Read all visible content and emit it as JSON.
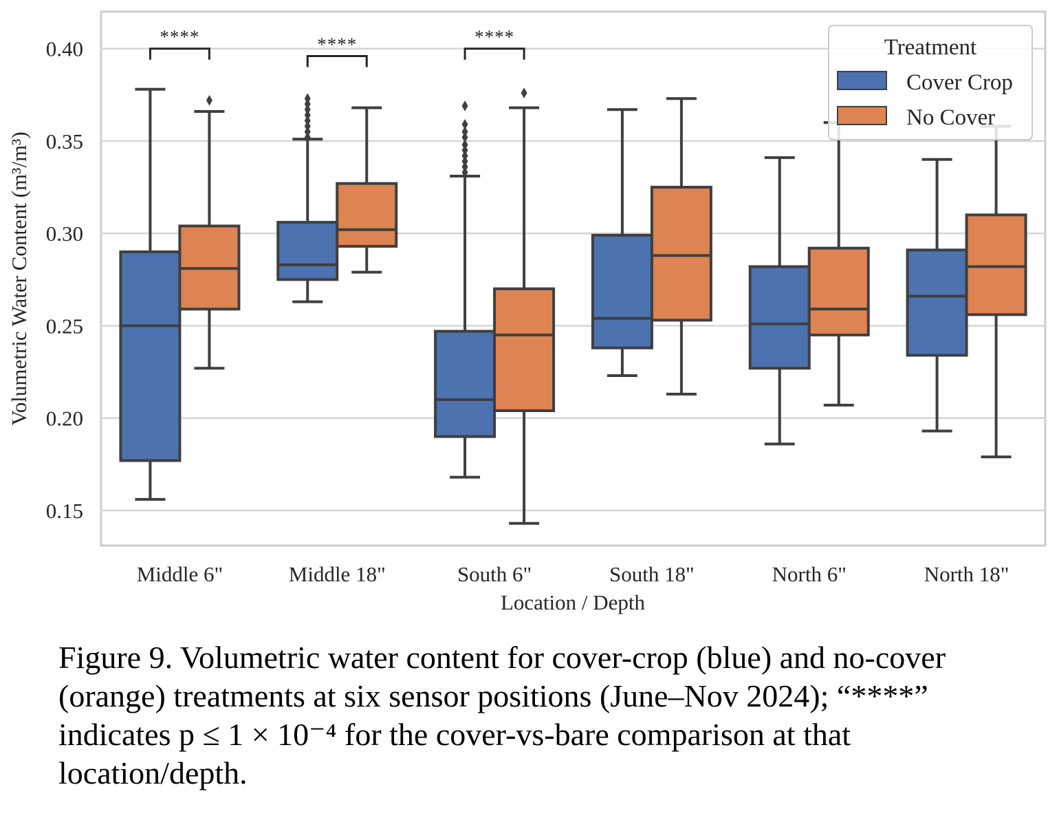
{
  "chart_data": {
    "type": "box",
    "xlabel": "Location / Depth",
    "ylabel": "Volumetric Water Content (m³/m³)",
    "ylim": [
      0.131,
      0.42
    ],
    "yticks": [
      "0.15",
      "0.20",
      "0.25",
      "0.30",
      "0.35",
      "0.40"
    ],
    "categories": [
      "Middle 6\"",
      "Middle 18\"",
      "South 6\"",
      "South 18\"",
      "North 6\"",
      "North 18\""
    ],
    "legend": {
      "title": "Treatment",
      "placement": "top-right"
    },
    "grid": "horizontal",
    "series": [
      {
        "name": "Cover Crop",
        "color": "#4c72b0",
        "boxes": [
          {
            "whislo": 0.156,
            "q1": 0.177,
            "med": 0.25,
            "q3": 0.29,
            "whishi": 0.378,
            "fliers": []
          },
          {
            "whislo": 0.263,
            "q1": 0.275,
            "med": 0.283,
            "q3": 0.306,
            "whishi": 0.351,
            "fliers": [
              0.352,
              0.355,
              0.358,
              0.361,
              0.364,
              0.367,
              0.37,
              0.373
            ]
          },
          {
            "whislo": 0.168,
            "q1": 0.19,
            "med": 0.21,
            "q3": 0.247,
            "whishi": 0.331,
            "fliers": [
              0.333,
              0.336,
              0.339,
              0.342,
              0.345,
              0.348,
              0.352,
              0.355,
              0.359,
              0.369
            ]
          },
          {
            "whislo": 0.223,
            "q1": 0.238,
            "med": 0.254,
            "q3": 0.299,
            "whishi": 0.367,
            "fliers": []
          },
          {
            "whislo": 0.186,
            "q1": 0.227,
            "med": 0.251,
            "q3": 0.282,
            "whishi": 0.341,
            "fliers": []
          },
          {
            "whislo": 0.193,
            "q1": 0.234,
            "med": 0.266,
            "q3": 0.291,
            "whishi": 0.34,
            "fliers": []
          }
        ]
      },
      {
        "name": "No Cover",
        "color": "#dd8452",
        "boxes": [
          {
            "whislo": 0.227,
            "q1": 0.259,
            "med": 0.281,
            "q3": 0.304,
            "whishi": 0.366,
            "fliers": [
              0.372
            ]
          },
          {
            "whislo": 0.279,
            "q1": 0.293,
            "med": 0.302,
            "q3": 0.327,
            "whishi": 0.368,
            "fliers": []
          },
          {
            "whislo": 0.143,
            "q1": 0.204,
            "med": 0.245,
            "q3": 0.27,
            "whishi": 0.368,
            "fliers": [
              0.376
            ]
          },
          {
            "whislo": 0.213,
            "q1": 0.253,
            "med": 0.288,
            "q3": 0.325,
            "whishi": 0.373,
            "fliers": []
          },
          {
            "whislo": 0.207,
            "q1": 0.245,
            "med": 0.259,
            "q3": 0.292,
            "whishi": 0.36,
            "fliers": []
          },
          {
            "whislo": 0.179,
            "q1": 0.256,
            "med": 0.282,
            "q3": 0.31,
            "whishi": 0.358,
            "fliers": []
          }
        ]
      }
    ],
    "annotations": [
      {
        "category_index": 0,
        "text": "****",
        "y": 0.4
      },
      {
        "category_index": 1,
        "text": "****",
        "y": 0.396
      },
      {
        "category_index": 2,
        "text": "****",
        "y": 0.4
      }
    ]
  },
  "caption": "Figure 9. Volumetric water content for cover-crop (blue) and no-cover (orange) treatments at six sensor positions (June–Nov 2024); “****” indicates p ≤ 1 × 10⁻⁴ for the cover-vs-bare comparison at that location/depth."
}
